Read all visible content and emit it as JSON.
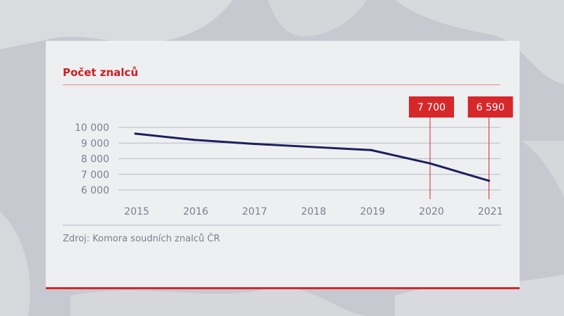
{
  "title": "Počet znalců",
  "source": "Zdroj: Komora soudních znalců ČR",
  "colors": {
    "accent": "#d6272b",
    "line": "#1e1f5c",
    "grid": "#b7bac6",
    "tick": "#7b8091",
    "card": "#eeeff1"
  },
  "chart_data": {
    "type": "line",
    "title": "Počet znalců",
    "xlabel": "",
    "ylabel": "",
    "x": [
      "2015",
      "2016",
      "2017",
      "2018",
      "2019",
      "2020",
      "2021"
    ],
    "series": [
      {
        "values": [
          9600,
          9200,
          8950,
          8750,
          8550,
          7700,
          6590
        ]
      }
    ],
    "yticks": [
      6000,
      7000,
      8000,
      9000,
      10000
    ],
    "ytick_labels": [
      "6 000",
      "7 000",
      "8 000",
      "9 000",
      "10 000"
    ],
    "ylim": [
      6000,
      10000
    ],
    "grid": true,
    "annotations": [
      {
        "x": "2020",
        "value": 7700,
        "label": "7 700"
      },
      {
        "x": "2021",
        "value": 6590,
        "label": "6 590"
      }
    ]
  }
}
